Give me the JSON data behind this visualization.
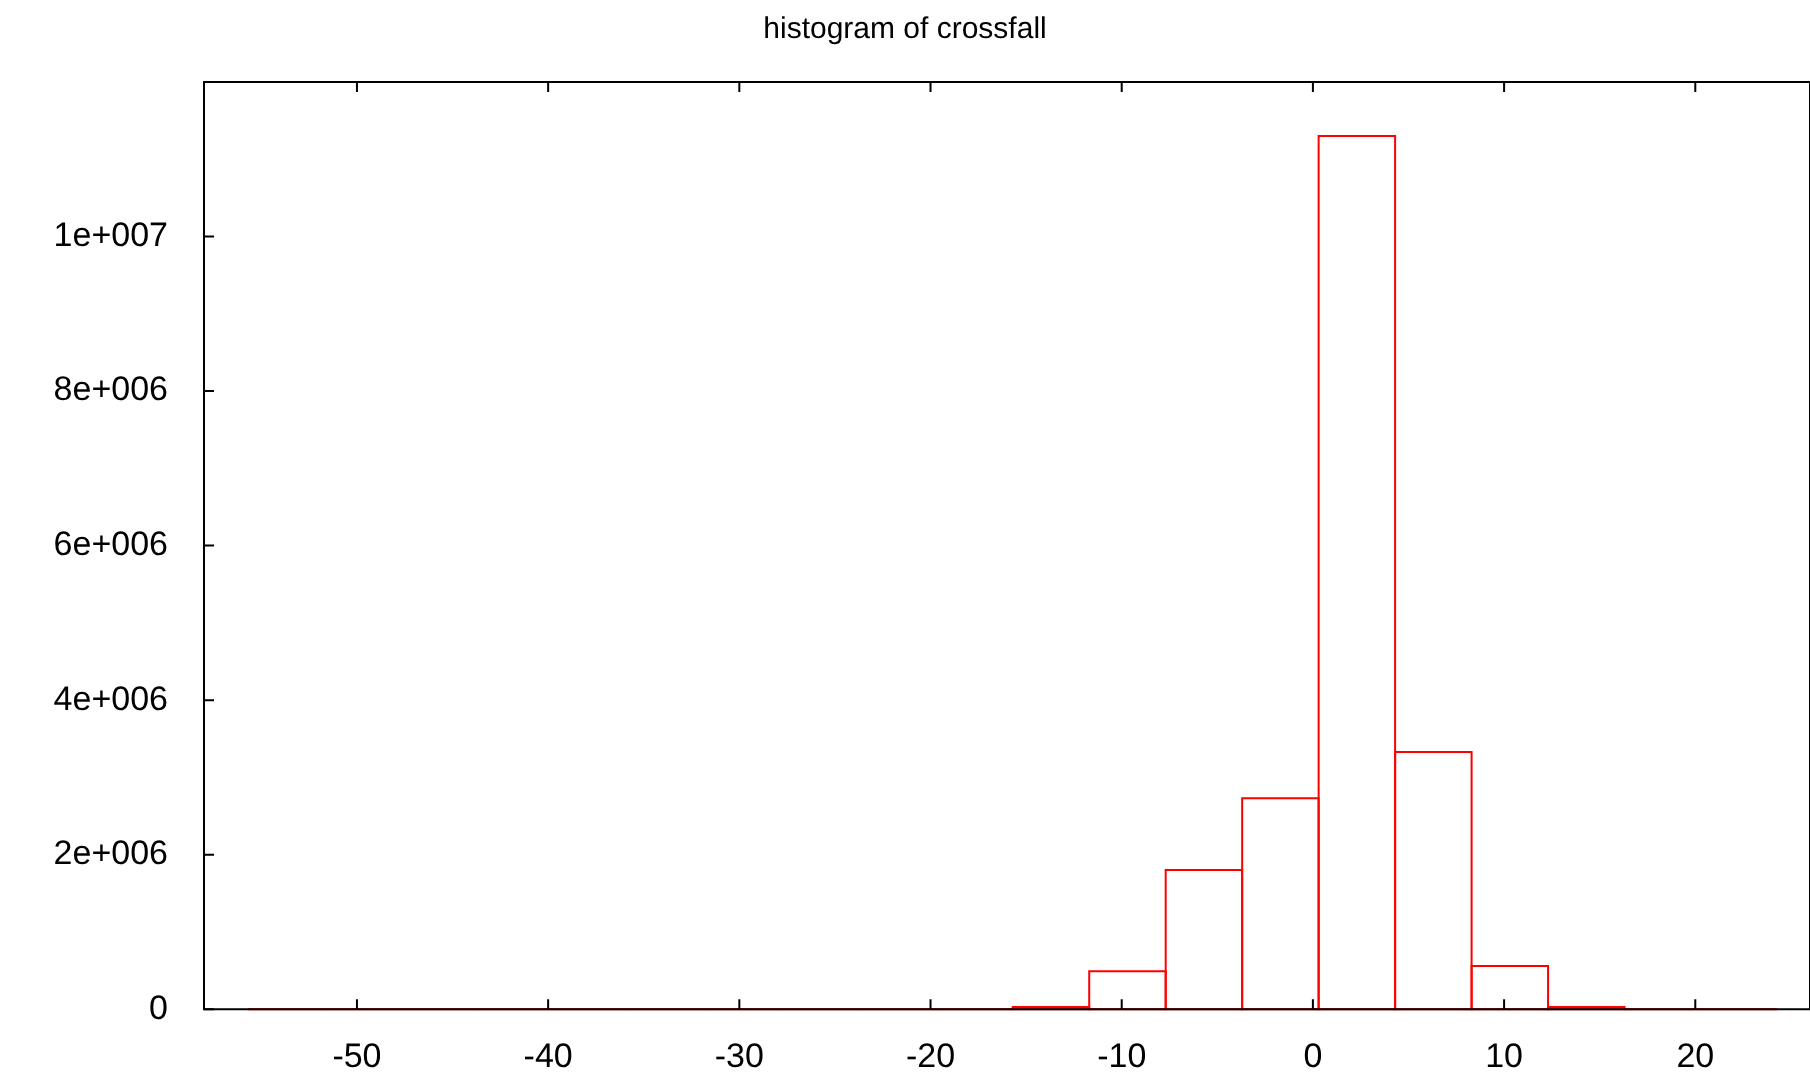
{
  "chart_data": {
    "type": "histogram",
    "title": "histogram of crossfall",
    "bins": [
      -55.7,
      -51.7,
      -47.7,
      -43.7,
      -39.7,
      -35.7,
      -31.7,
      -27.7,
      -23.7,
      -19.7,
      -15.7,
      -11.7,
      -7.7,
      -3.7,
      0.3,
      4.3,
      8.3,
      12.3,
      16.3,
      20.3,
      24.3
    ],
    "values": [
      0,
      0,
      0,
      0,
      0,
      0,
      0,
      0,
      0,
      0,
      30000,
      490000,
      1800000,
      2730000,
      11300000,
      3330000,
      560000,
      30000,
      0,
      0
    ],
    "color": "#ff0000",
    "xlim": [
      -58,
      26
    ],
    "xticks": [
      -50,
      -40,
      -30,
      -20,
      -10,
      0,
      10,
      20
    ],
    "ylim": [
      0,
      12000000
    ],
    "yticks": [
      0,
      {
        "value": 2000000,
        "label": "2e+006"
      },
      {
        "value": 4000000,
        "label": "4e+006"
      },
      {
        "value": 6000000,
        "label": "6e+006"
      },
      {
        "value": 8000000,
        "label": "8e+006"
      },
      {
        "value": 10000000,
        "label": "1e+007"
      }
    ]
  }
}
